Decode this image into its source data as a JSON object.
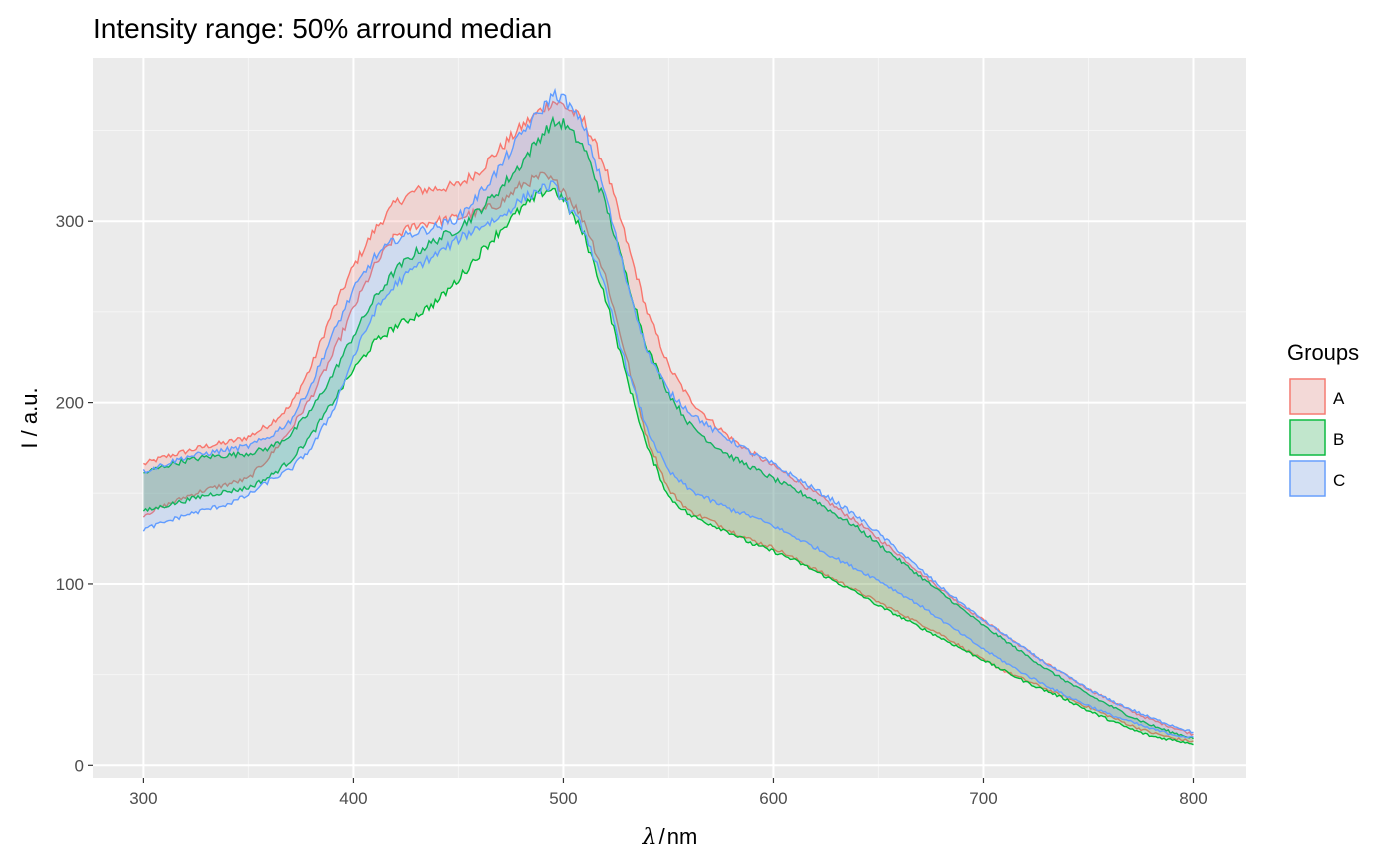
{
  "chart_data": {
    "type": "area",
    "title": "Intensity range: 50% arround median",
    "xlabel": {
      "symbol": "λ",
      "separator": "/",
      "unit": "nm"
    },
    "ylabel": "I / a.u.",
    "xlim": [
      276,
      825
    ],
    "ylim": [
      -7,
      390
    ],
    "x_ticks": [
      300,
      400,
      500,
      600,
      700,
      800
    ],
    "y_ticks": [
      0,
      100,
      200,
      300
    ],
    "grid": true,
    "legend": {
      "title": "Groups",
      "position": "right"
    },
    "x": [
      300,
      310,
      320,
      330,
      340,
      350,
      360,
      370,
      380,
      390,
      400,
      410,
      420,
      430,
      440,
      450,
      460,
      470,
      480,
      490,
      495,
      500,
      510,
      520,
      530,
      540,
      550,
      560,
      570,
      580,
      590,
      600,
      610,
      620,
      630,
      640,
      650,
      660,
      670,
      680,
      690,
      700,
      710,
      720,
      730,
      740,
      750,
      760,
      770,
      780,
      790,
      800
    ],
    "series": [
      {
        "name": "A",
        "color": "#F8766D",
        "fill": "rgba(248,118,109,0.2)",
        "upper": [
          166,
          170,
          173,
          176,
          178,
          181,
          188,
          198,
          220,
          250,
          275,
          295,
          310,
          317,
          318,
          320,
          328,
          340,
          352,
          362,
          366,
          364,
          355,
          330,
          290,
          250,
          220,
          202,
          190,
          180,
          172,
          165,
          158,
          150,
          142,
          134,
          125,
          116,
          106,
          97,
          88,
          80,
          72,
          64,
          56,
          49,
          42,
          36,
          30,
          25,
          21,
          17
        ],
        "lower": [
          138,
          143,
          148,
          152,
          155,
          158,
          170,
          185,
          203,
          226,
          252,
          275,
          292,
          298,
          300,
          302,
          305,
          310,
          320,
          325,
          322,
          318,
          300,
          270,
          225,
          180,
          152,
          140,
          135,
          129,
          124,
          120,
          114,
          108,
          102,
          96,
          90,
          84,
          78,
          72,
          65,
          58,
          52,
          47,
          42,
          37,
          32,
          27,
          22,
          18,
          15,
          13
        ]
      },
      {
        "name": "B",
        "color": "#00BA38",
        "fill": "rgba(0,186,56,0.2)",
        "upper": [
          161,
          165,
          168,
          170,
          171,
          172,
          175,
          182,
          196,
          215,
          237,
          257,
          273,
          283,
          290,
          296,
          306,
          318,
          332,
          348,
          354,
          354,
          340,
          310,
          270,
          230,
          205,
          188,
          178,
          170,
          164,
          158,
          152,
          146,
          138,
          131,
          122,
          113,
          104,
          95,
          86,
          77,
          69,
          61,
          53,
          46,
          39,
          33,
          27,
          22,
          18,
          15
        ],
        "lower": [
          140,
          143,
          146,
          149,
          151,
          153,
          159,
          168,
          182,
          200,
          218,
          233,
          242,
          248,
          256,
          268,
          282,
          295,
          307,
          316,
          318,
          312,
          292,
          258,
          215,
          175,
          148,
          138,
          133,
          128,
          122,
          118,
          113,
          107,
          101,
          95,
          88,
          82,
          76,
          70,
          64,
          58,
          52,
          46,
          41,
          36,
          30,
          25,
          20,
          16,
          14,
          12
        ]
      },
      {
        "name": "C",
        "color": "#619CFF",
        "fill": "rgba(97,156,255,0.2)",
        "upper": [
          162,
          166,
          170,
          172,
          174,
          176,
          181,
          190,
          210,
          237,
          262,
          280,
          290,
          294,
          297,
          302,
          315,
          330,
          348,
          362,
          370,
          368,
          352,
          315,
          268,
          228,
          206,
          195,
          186,
          179,
          172,
          166,
          159,
          152,
          145,
          137,
          128,
          118,
          108,
          98,
          89,
          80,
          72,
          64,
          56,
          49,
          42,
          36,
          31,
          26,
          22,
          18
        ],
        "lower": [
          130,
          134,
          138,
          141,
          144,
          149,
          157,
          163,
          175,
          195,
          225,
          250,
          265,
          275,
          282,
          290,
          297,
          302,
          312,
          318,
          320,
          312,
          295,
          262,
          220,
          185,
          162,
          152,
          146,
          141,
          137,
          132,
          126,
          120,
          114,
          108,
          102,
          95,
          88,
          80,
          72,
          64,
          57,
          50,
          44,
          38,
          33,
          28,
          24,
          20,
          17,
          15
        ]
      }
    ]
  }
}
